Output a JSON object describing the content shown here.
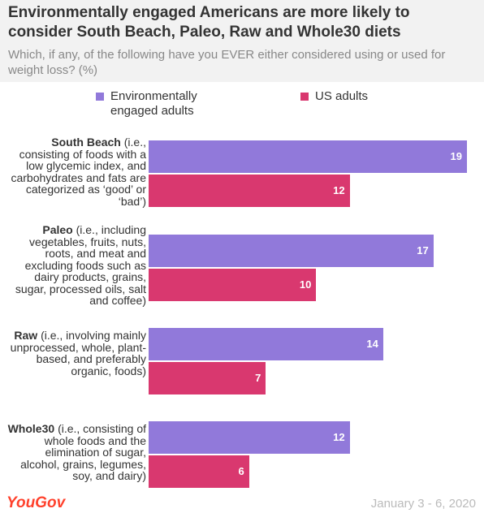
{
  "chart_data": {
    "type": "bar",
    "orientation": "horizontal",
    "title": "Environmentally engaged Americans are more likely to consider South Beach, Paleo, Raw and Whole30 diets",
    "subtitle": "Which, if any, of the following have you EVER either considered using or used for weight loss? (%)",
    "categories": [
      "South Beach",
      "Paleo",
      "Raw",
      "Whole30"
    ],
    "category_descriptions": [
      "(i.e., consisting of foods with a low glycemic index, and carbohydrates and fats are categorized as ‘good’ or ‘bad’)",
      "(i.e., including vegetables, fruits, nuts, roots, and meat and excluding foods such as dairy products, grains, sugar, processed oils, salt and coffee)",
      "(i.e., involving mainly unprocessed, whole, plant-based, and preferably organic, foods)",
      "(i.e., consisting of whole foods and the elimination of sugar, alcohol, grains, legumes, soy, and dairy)"
    ],
    "series": [
      {
        "name": "Environmentally engaged adults",
        "color": "#9179da",
        "values": [
          19,
          17,
          14,
          12
        ]
      },
      {
        "name": "US adults",
        "color": "#d9386f",
        "values": [
          12,
          10,
          7,
          6
        ]
      }
    ],
    "source": "YouGov",
    "date": "January 3 - 6, 2020"
  }
}
